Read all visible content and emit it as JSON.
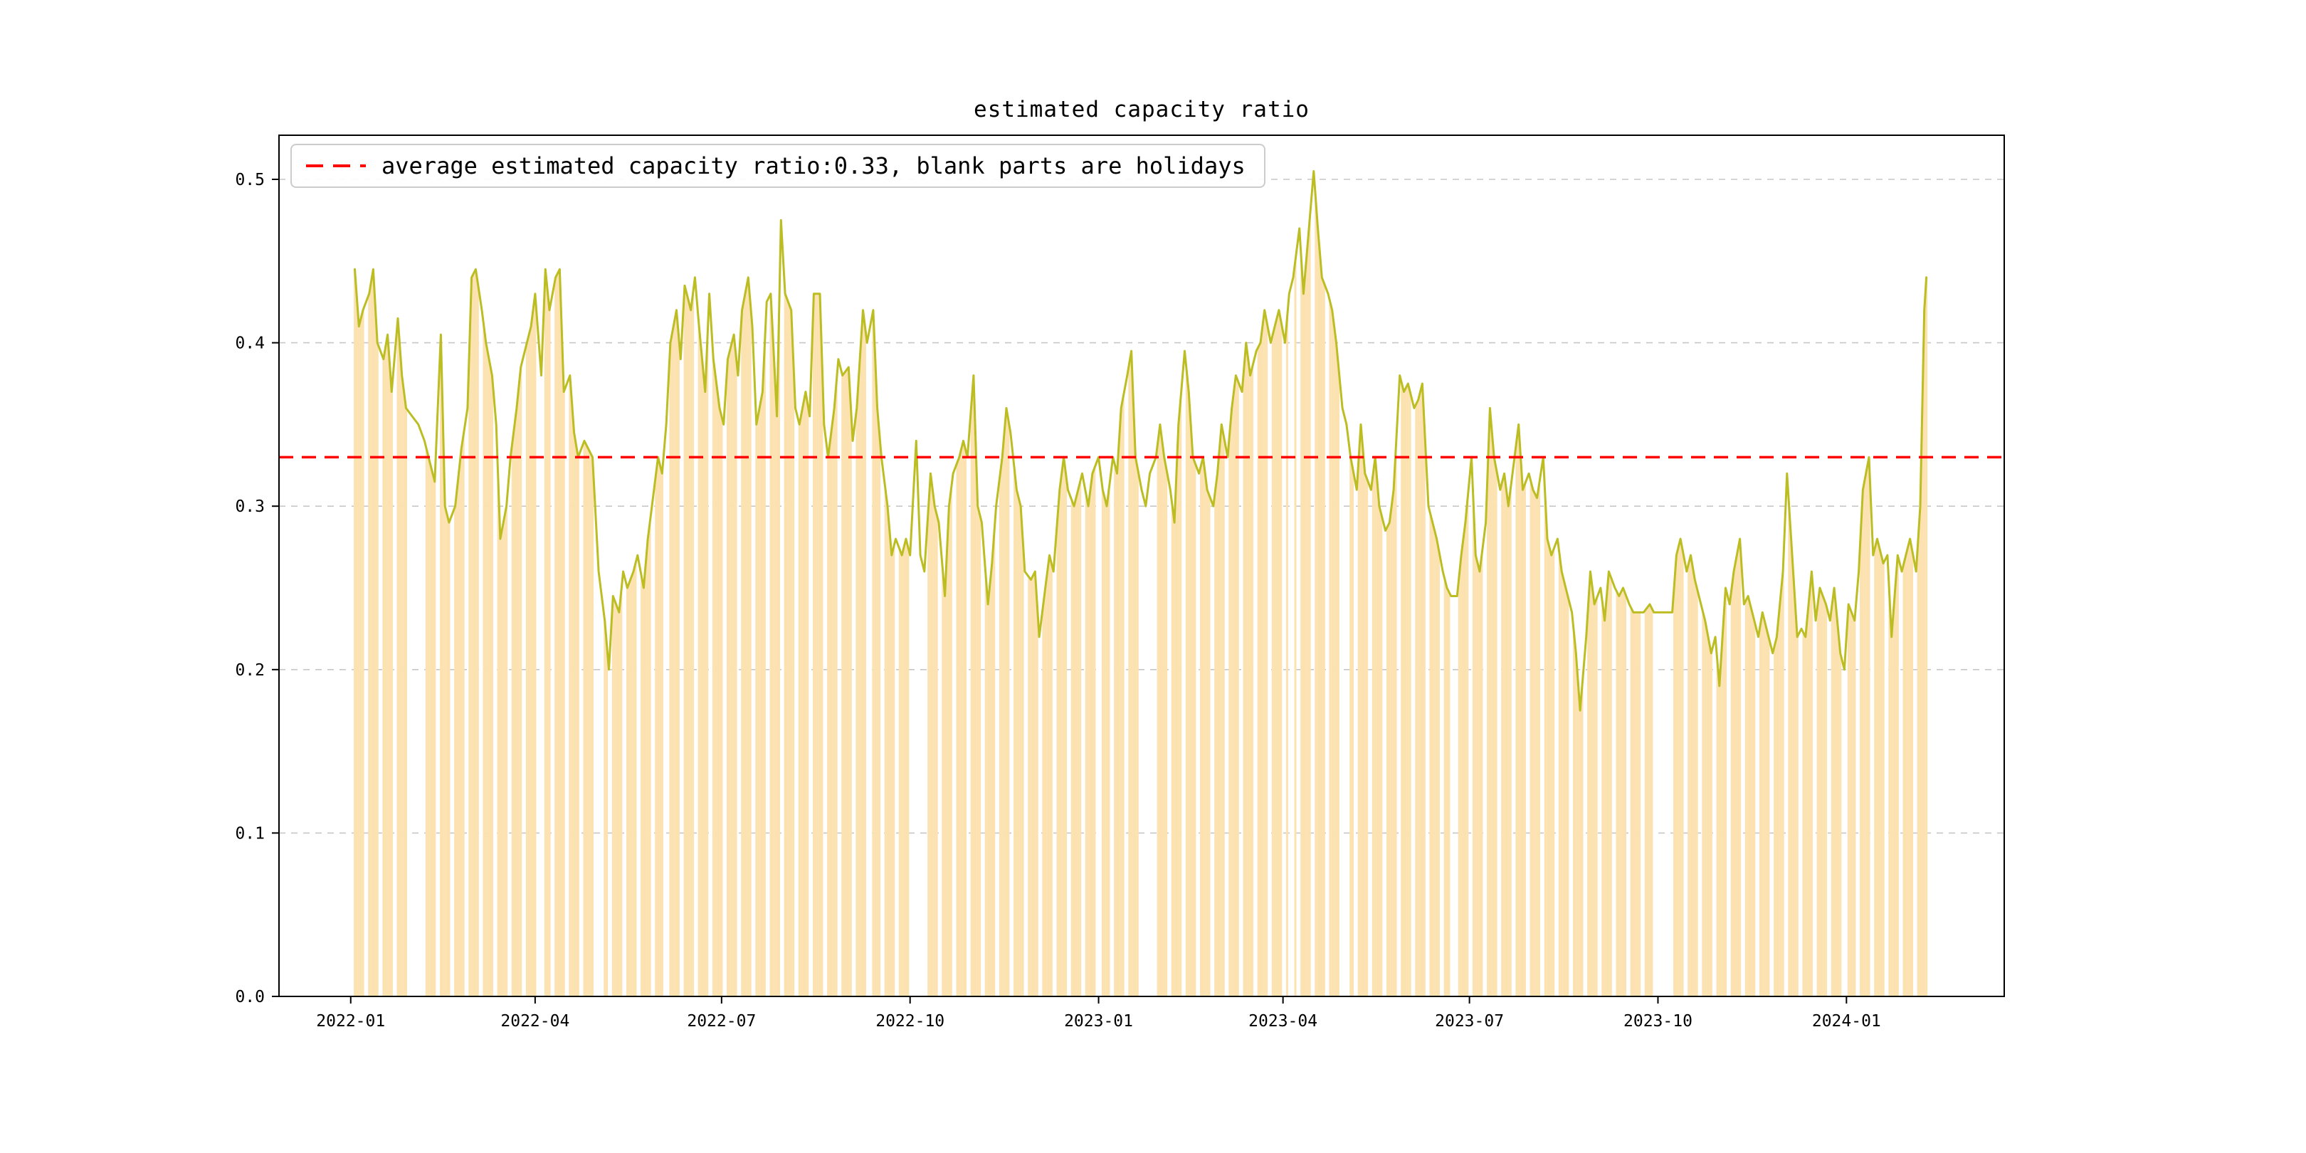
{
  "title": "estimated capacity ratio",
  "legend": {
    "label": "average estimated capacity ratio:0.33, blank parts are holidays"
  },
  "colors": {
    "line": "#bcbd22",
    "bar": "#fce2b0",
    "average": "#ff0000",
    "grid": "#c7c7c7",
    "axis": "#000000",
    "background": "#ffffff"
  },
  "chart_data": {
    "type": "line",
    "title": "estimated capacity ratio",
    "xlabel": "",
    "ylabel": "",
    "start_date": "2022-01-03",
    "average": 0.33,
    "ylim": [
      0.0,
      0.527
    ],
    "yticks": [
      0.0,
      0.1,
      0.2,
      0.3,
      0.4,
      0.5
    ],
    "xticks": [
      "2022-01",
      "2022-04",
      "2022-07",
      "2022-10",
      "2023-01",
      "2023-04",
      "2023-07",
      "2023-10",
      "2024-01"
    ],
    "xlim_days": [
      -37,
      805
    ],
    "grid": true,
    "legend_position": "upper left",
    "points": [
      [
        0,
        0.445
      ],
      [
        2,
        0.41
      ],
      [
        4,
        0.42
      ],
      [
        7,
        0.43
      ],
      [
        9,
        0.445
      ],
      [
        11,
        0.4
      ],
      [
        14,
        0.39
      ],
      [
        16,
        0.405
      ],
      [
        18,
        0.37
      ],
      [
        21,
        0.415
      ],
      [
        23,
        0.38
      ],
      [
        25,
        0.36
      ],
      [
        28,
        0.355
      ],
      [
        31,
        0.35
      ],
      [
        34,
        0.34
      ],
      [
        37,
        0.325
      ],
      [
        39,
        0.315
      ],
      [
        42,
        0.405
      ],
      [
        44,
        0.3
      ],
      [
        46,
        0.29
      ],
      [
        49,
        0.3
      ],
      [
        52,
        0.335
      ],
      [
        55,
        0.36
      ],
      [
        57,
        0.44
      ],
      [
        59,
        0.445
      ],
      [
        62,
        0.42
      ],
      [
        64,
        0.4
      ],
      [
        67,
        0.38
      ],
      [
        69,
        0.35
      ],
      [
        71,
        0.28
      ],
      [
        74,
        0.3
      ],
      [
        76,
        0.33
      ],
      [
        79,
        0.36
      ],
      [
        81,
        0.385
      ],
      [
        84,
        0.4
      ],
      [
        86,
        0.41
      ],
      [
        88,
        0.43
      ],
      [
        91,
        0.38
      ],
      [
        93,
        0.445
      ],
      [
        95,
        0.42
      ],
      [
        98,
        0.44
      ],
      [
        100,
        0.445
      ],
      [
        102,
        0.37
      ],
      [
        105,
        0.38
      ],
      [
        107,
        0.345
      ],
      [
        109,
        0.33
      ],
      [
        112,
        0.34
      ],
      [
        114,
        0.335
      ],
      [
        116,
        0.33
      ],
      [
        119,
        0.26
      ],
      [
        122,
        0.23
      ],
      [
        124,
        0.2
      ],
      [
        126,
        0.245
      ],
      [
        129,
        0.235
      ],
      [
        131,
        0.26
      ],
      [
        133,
        0.25
      ],
      [
        136,
        0.26
      ],
      [
        138,
        0.27
      ],
      [
        141,
        0.25
      ],
      [
        143,
        0.28
      ],
      [
        145,
        0.3
      ],
      [
        148,
        0.33
      ],
      [
        150,
        0.32
      ],
      [
        152,
        0.35
      ],
      [
        154,
        0.4
      ],
      [
        157,
        0.42
      ],
      [
        159,
        0.39
      ],
      [
        161,
        0.435
      ],
      [
        164,
        0.42
      ],
      [
        166,
        0.44
      ],
      [
        168,
        0.41
      ],
      [
        171,
        0.37
      ],
      [
        173,
        0.43
      ],
      [
        175,
        0.39
      ],
      [
        178,
        0.36
      ],
      [
        180,
        0.35
      ],
      [
        182,
        0.39
      ],
      [
        185,
        0.405
      ],
      [
        187,
        0.38
      ],
      [
        189,
        0.42
      ],
      [
        192,
        0.44
      ],
      [
        194,
        0.41
      ],
      [
        196,
        0.35
      ],
      [
        199,
        0.37
      ],
      [
        201,
        0.425
      ],
      [
        203,
        0.43
      ],
      [
        206,
        0.355
      ],
      [
        208,
        0.475
      ],
      [
        210,
        0.43
      ],
      [
        213,
        0.42
      ],
      [
        215,
        0.36
      ],
      [
        217,
        0.35
      ],
      [
        220,
        0.37
      ],
      [
        222,
        0.355
      ],
      [
        224,
        0.43
      ],
      [
        227,
        0.43
      ],
      [
        229,
        0.35
      ],
      [
        231,
        0.33
      ],
      [
        234,
        0.36
      ],
      [
        236,
        0.39
      ],
      [
        238,
        0.38
      ],
      [
        241,
        0.385
      ],
      [
        243,
        0.34
      ],
      [
        245,
        0.36
      ],
      [
        248,
        0.42
      ],
      [
        250,
        0.4
      ],
      [
        253,
        0.42
      ],
      [
        255,
        0.36
      ],
      [
        257,
        0.33
      ],
      [
        260,
        0.3
      ],
      [
        262,
        0.27
      ],
      [
        264,
        0.28
      ],
      [
        267,
        0.27
      ],
      [
        269,
        0.28
      ],
      [
        271,
        0.27
      ],
      [
        274,
        0.34
      ],
      [
        276,
        0.27
      ],
      [
        278,
        0.26
      ],
      [
        281,
        0.32
      ],
      [
        283,
        0.3
      ],
      [
        285,
        0.29
      ],
      [
        288,
        0.245
      ],
      [
        290,
        0.3
      ],
      [
        292,
        0.32
      ],
      [
        295,
        0.33
      ],
      [
        297,
        0.34
      ],
      [
        299,
        0.33
      ],
      [
        302,
        0.38
      ],
      [
        304,
        0.3
      ],
      [
        306,
        0.29
      ],
      [
        309,
        0.24
      ],
      [
        311,
        0.265
      ],
      [
        313,
        0.3
      ],
      [
        316,
        0.33
      ],
      [
        318,
        0.36
      ],
      [
        320,
        0.345
      ],
      [
        323,
        0.31
      ],
      [
        325,
        0.3
      ],
      [
        327,
        0.26
      ],
      [
        330,
        0.255
      ],
      [
        332,
        0.26
      ],
      [
        334,
        0.22
      ],
      [
        337,
        0.25
      ],
      [
        339,
        0.27
      ],
      [
        341,
        0.26
      ],
      [
        344,
        0.31
      ],
      [
        346,
        0.33
      ],
      [
        348,
        0.31
      ],
      [
        351,
        0.3
      ],
      [
        353,
        0.31
      ],
      [
        355,
        0.32
      ],
      [
        358,
        0.3
      ],
      [
        360,
        0.32
      ],
      [
        363,
        0.33
      ],
      [
        365,
        0.31
      ],
      [
        367,
        0.3
      ],
      [
        370,
        0.33
      ],
      [
        372,
        0.32
      ],
      [
        374,
        0.36
      ],
      [
        377,
        0.38
      ],
      [
        379,
        0.395
      ],
      [
        381,
        0.33
      ],
      [
        384,
        0.31
      ],
      [
        386,
        0.3
      ],
      [
        388,
        0.32
      ],
      [
        391,
        0.33
      ],
      [
        393,
        0.35
      ],
      [
        395,
        0.33
      ],
      [
        398,
        0.31
      ],
      [
        400,
        0.29
      ],
      [
        402,
        0.35
      ],
      [
        405,
        0.395
      ],
      [
        407,
        0.37
      ],
      [
        409,
        0.33
      ],
      [
        412,
        0.32
      ],
      [
        414,
        0.33
      ],
      [
        416,
        0.31
      ],
      [
        419,
        0.3
      ],
      [
        421,
        0.32
      ],
      [
        423,
        0.35
      ],
      [
        426,
        0.33
      ],
      [
        428,
        0.36
      ],
      [
        430,
        0.38
      ],
      [
        433,
        0.37
      ],
      [
        435,
        0.4
      ],
      [
        437,
        0.38
      ],
      [
        440,
        0.395
      ],
      [
        442,
        0.4
      ],
      [
        444,
        0.42
      ],
      [
        447,
        0.4
      ],
      [
        449,
        0.41
      ],
      [
        451,
        0.42
      ],
      [
        454,
        0.4
      ],
      [
        456,
        0.43
      ],
      [
        458,
        0.44
      ],
      [
        461,
        0.47
      ],
      [
        463,
        0.43
      ],
      [
        465,
        0.46
      ],
      [
        468,
        0.505
      ],
      [
        470,
        0.47
      ],
      [
        472,
        0.44
      ],
      [
        475,
        0.43
      ],
      [
        477,
        0.42
      ],
      [
        479,
        0.4
      ],
      [
        482,
        0.36
      ],
      [
        484,
        0.35
      ],
      [
        486,
        0.33
      ],
      [
        489,
        0.31
      ],
      [
        491,
        0.35
      ],
      [
        493,
        0.32
      ],
      [
        496,
        0.31
      ],
      [
        498,
        0.33
      ],
      [
        500,
        0.3
      ],
      [
        503,
        0.285
      ],
      [
        505,
        0.29
      ],
      [
        507,
        0.31
      ],
      [
        510,
        0.38
      ],
      [
        512,
        0.37
      ],
      [
        514,
        0.375
      ],
      [
        517,
        0.36
      ],
      [
        519,
        0.365
      ],
      [
        521,
        0.375
      ],
      [
        524,
        0.3
      ],
      [
        526,
        0.29
      ],
      [
        528,
        0.28
      ],
      [
        531,
        0.26
      ],
      [
        533,
        0.25
      ],
      [
        535,
        0.245
      ],
      [
        538,
        0.245
      ],
      [
        540,
        0.27
      ],
      [
        542,
        0.29
      ],
      [
        545,
        0.33
      ],
      [
        547,
        0.27
      ],
      [
        549,
        0.26
      ],
      [
        552,
        0.29
      ],
      [
        554,
        0.36
      ],
      [
        556,
        0.33
      ],
      [
        559,
        0.31
      ],
      [
        561,
        0.32
      ],
      [
        563,
        0.3
      ],
      [
        566,
        0.33
      ],
      [
        568,
        0.35
      ],
      [
        570,
        0.31
      ],
      [
        573,
        0.32
      ],
      [
        575,
        0.31
      ],
      [
        577,
        0.305
      ],
      [
        580,
        0.33
      ],
      [
        582,
        0.28
      ],
      [
        584,
        0.27
      ],
      [
        587,
        0.28
      ],
      [
        589,
        0.26
      ],
      [
        591,
        0.25
      ],
      [
        594,
        0.235
      ],
      [
        596,
        0.21
      ],
      [
        598,
        0.175
      ],
      [
        601,
        0.22
      ],
      [
        603,
        0.26
      ],
      [
        605,
        0.24
      ],
      [
        608,
        0.25
      ],
      [
        610,
        0.23
      ],
      [
        612,
        0.26
      ],
      [
        615,
        0.25
      ],
      [
        617,
        0.245
      ],
      [
        619,
        0.25
      ],
      [
        622,
        0.24
      ],
      [
        624,
        0.235
      ],
      [
        627,
        0.235
      ],
      [
        629,
        0.235
      ],
      [
        632,
        0.24
      ],
      [
        634,
        0.235
      ],
      [
        643,
        0.235
      ],
      [
        645,
        0.27
      ],
      [
        647,
        0.28
      ],
      [
        650,
        0.26
      ],
      [
        652,
        0.27
      ],
      [
        654,
        0.255
      ],
      [
        657,
        0.24
      ],
      [
        659,
        0.23
      ],
      [
        662,
        0.21
      ],
      [
        664,
        0.22
      ],
      [
        666,
        0.19
      ],
      [
        669,
        0.25
      ],
      [
        671,
        0.24
      ],
      [
        673,
        0.26
      ],
      [
        676,
        0.28
      ],
      [
        678,
        0.24
      ],
      [
        680,
        0.245
      ],
      [
        683,
        0.23
      ],
      [
        685,
        0.22
      ],
      [
        687,
        0.235
      ],
      [
        690,
        0.22
      ],
      [
        692,
        0.21
      ],
      [
        694,
        0.22
      ],
      [
        697,
        0.26
      ],
      [
        699,
        0.32
      ],
      [
        701,
        0.28
      ],
      [
        704,
        0.22
      ],
      [
        706,
        0.225
      ],
      [
        708,
        0.22
      ],
      [
        711,
        0.26
      ],
      [
        713,
        0.23
      ],
      [
        715,
        0.25
      ],
      [
        718,
        0.24
      ],
      [
        720,
        0.23
      ],
      [
        722,
        0.25
      ],
      [
        725,
        0.21
      ],
      [
        727,
        0.2
      ],
      [
        729,
        0.24
      ],
      [
        732,
        0.23
      ],
      [
        734,
        0.26
      ],
      [
        736,
        0.31
      ],
      [
        739,
        0.33
      ],
      [
        741,
        0.27
      ],
      [
        743,
        0.28
      ],
      [
        746,
        0.265
      ],
      [
        748,
        0.27
      ],
      [
        750,
        0.22
      ],
      [
        753,
        0.27
      ],
      [
        755,
        0.26
      ],
      [
        757,
        0.27
      ],
      [
        759,
        0.28
      ],
      [
        762,
        0.26
      ],
      [
        764,
        0.3
      ],
      [
        766,
        0.42
      ],
      [
        767,
        0.44
      ]
    ],
    "holidays": [
      [
        28,
        34
      ],
      [
        90,
        92
      ],
      [
        117,
        121
      ],
      [
        151,
        153
      ],
      [
        250,
        252
      ],
      [
        271,
        277
      ],
      [
        362,
        364
      ],
      [
        383,
        389
      ],
      [
        456,
        458
      ],
      [
        481,
        485
      ],
      [
        535,
        537
      ],
      [
        634,
        641
      ],
      [
        726,
        728
      ],
      [
        768,
        775
      ]
    ]
  }
}
